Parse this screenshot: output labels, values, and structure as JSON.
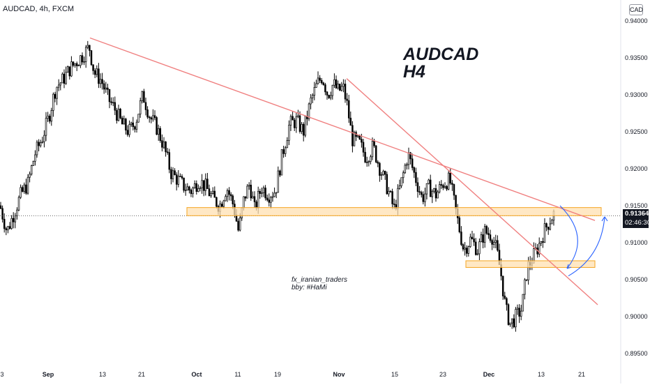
{
  "header": {
    "symbol_line": "AUDCAD, 4h, FXCM",
    "currency": "CAD"
  },
  "annotations": {
    "title_line1": "AUDCAD",
    "title_line2": "H4",
    "author_line1": "fx_iranian_traders",
    "author_line2": "bby: #HaMi"
  },
  "price_tag": {
    "price": "0.91364",
    "countdown": "02:46:30"
  },
  "colors": {
    "candle": "#000000",
    "candle_up_fill": "#ffffff",
    "trendline": "#f08080",
    "zone_fill": "#ffe0b2",
    "zone_border": "#f5a623",
    "arrow": "#2962ff",
    "axis_text": "#131722"
  },
  "chart_data": {
    "type": "candlestick",
    "symbol": "AUDCAD",
    "timeframe": "4h",
    "source": "FXCM",
    "ylim": [
      0.8935,
      0.9405
    ],
    "y_ticks": [
      "0.94000",
      "0.93500",
      "0.93000",
      "0.92500",
      "0.92000",
      "0.91500",
      "0.91000",
      "0.90500",
      "0.90000",
      "0.89500"
    ],
    "x_ticks": [
      "3",
      "Sep",
      "13",
      "21",
      "Oct",
      "11",
      "19",
      "Nov",
      "15",
      "23",
      "Dec",
      "13",
      "21"
    ],
    "last_price": 0.91364,
    "price_path": [
      [
        0,
        0.915
      ],
      [
        10,
        0.9115
      ],
      [
        20,
        0.914
      ],
      [
        30,
        0.9165
      ],
      [
        40,
        0.918
      ],
      [
        50,
        0.922
      ],
      [
        60,
        0.924
      ],
      [
        70,
        0.927
      ],
      [
        80,
        0.931
      ],
      [
        90,
        0.932
      ],
      [
        100,
        0.9335
      ],
      [
        110,
        0.9345
      ],
      [
        120,
        0.9355
      ],
      [
        128,
        0.9365
      ],
      [
        135,
        0.933
      ],
      [
        145,
        0.932
      ],
      [
        155,
        0.9295
      ],
      [
        165,
        0.928
      ],
      [
        175,
        0.926
      ],
      [
        185,
        0.925
      ],
      [
        195,
        0.9265
      ],
      [
        205,
        0.93
      ],
      [
        215,
        0.927
      ],
      [
        225,
        0.9255
      ],
      [
        235,
        0.923
      ],
      [
        245,
        0.9195
      ],
      [
        255,
        0.9185
      ],
      [
        265,
        0.9175
      ],
      [
        275,
        0.917
      ],
      [
        285,
        0.9185
      ],
      [
        295,
        0.9175
      ],
      [
        305,
        0.916
      ],
      [
        315,
        0.915
      ],
      [
        325,
        0.9175
      ],
      [
        335,
        0.915
      ],
      [
        342,
        0.9115
      ],
      [
        350,
        0.916
      ],
      [
        358,
        0.918
      ],
      [
        365,
        0.9145
      ],
      [
        375,
        0.9175
      ],
      [
        385,
        0.9165
      ],
      [
        395,
        0.917
      ],
      [
        405,
        0.922
      ],
      [
        415,
        0.926
      ],
      [
        425,
        0.9265
      ],
      [
        435,
        0.925
      ],
      [
        445,
        0.929
      ],
      [
        455,
        0.9315
      ],
      [
        462,
        0.9325
      ],
      [
        470,
        0.93
      ],
      [
        478,
        0.9315
      ],
      [
        485,
        0.9305
      ],
      [
        492,
        0.931
      ],
      [
        498,
        0.9285
      ],
      [
        505,
        0.924
      ],
      [
        515,
        0.9235
      ],
      [
        525,
        0.9215
      ],
      [
        535,
        0.923
      ],
      [
        545,
        0.92
      ],
      [
        555,
        0.9175
      ],
      [
        565,
        0.9145
      ],
      [
        575,
        0.918
      ],
      [
        585,
        0.922
      ],
      [
        595,
        0.919
      ],
      [
        605,
        0.916
      ],
      [
        615,
        0.9175
      ],
      [
        625,
        0.9165
      ],
      [
        635,
        0.918
      ],
      [
        645,
        0.9185
      ],
      [
        655,
        0.9135
      ],
      [
        665,
        0.909
      ],
      [
        675,
        0.9105
      ],
      [
        685,
        0.909
      ],
      [
        695,
        0.9115
      ],
      [
        705,
        0.911
      ],
      [
        712,
        0.909
      ],
      [
        718,
        0.906
      ],
      [
        725,
        0.901
      ],
      [
        732,
        0.899
      ],
      [
        740,
        0.9
      ],
      [
        748,
        0.901
      ],
      [
        756,
        0.9065
      ],
      [
        764,
        0.908
      ],
      [
        772,
        0.9095
      ],
      [
        780,
        0.9115
      ],
      [
        788,
        0.913
      ],
      [
        795,
        0.914
      ]
    ],
    "trendlines": [
      {
        "from": [
          "Sep 9",
          0.9377
        ],
        "to": [
          "Dec 19",
          0.913
        ]
      },
      {
        "from": [
          "Nov 2",
          0.9322
        ],
        "to": [
          "Dec 22",
          0.9016
        ]
      }
    ],
    "zones": [
      {
        "top": 0.91475,
        "bottom": 0.91365
      },
      {
        "top": 0.90755,
        "bottom": 0.90665
      }
    ],
    "arrows": [
      {
        "type": "curved-down",
        "from": 0.915,
        "to": 0.9065
      },
      {
        "type": "curved-up",
        "from": 0.9055,
        "to": 0.9135
      }
    ]
  }
}
